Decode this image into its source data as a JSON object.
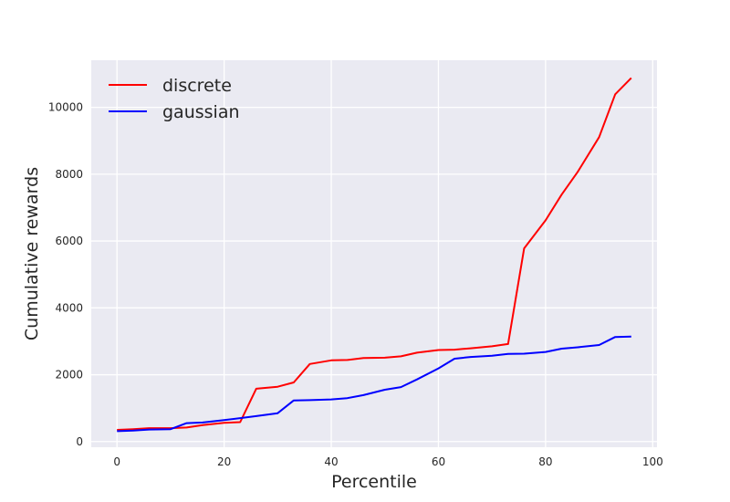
{
  "chart_data": {
    "type": "line",
    "title": "",
    "xlabel": "Percentile",
    "ylabel": "Cumulative rewards",
    "xlim": [
      -4.8,
      100.8
    ],
    "ylim": [
      -170,
      11410
    ],
    "xticks": [
      0,
      20,
      40,
      60,
      80,
      100
    ],
    "yticks": [
      0,
      2000,
      4000,
      6000,
      8000,
      10000
    ],
    "grid": true,
    "legend_position": "top-left",
    "series": [
      {
        "name": "discrete",
        "color": "#ff0000",
        "x": [
          0,
          3,
          6,
          10,
          13,
          16,
          20,
          23,
          26,
          30,
          33,
          36,
          40,
          43,
          46,
          50,
          53,
          56,
          60,
          63,
          66,
          70,
          73,
          76,
          80,
          83,
          86,
          90,
          93,
          96
        ],
        "y": [
          350,
          370,
          400,
          400,
          420,
          490,
          560,
          580,
          1580,
          1640,
          1770,
          2320,
          2430,
          2440,
          2500,
          2510,
          2550,
          2660,
          2740,
          2750,
          2790,
          2850,
          2920,
          5780,
          6620,
          7390,
          8070,
          9110,
          10390,
          10880
        ]
      },
      {
        "name": "gaussian",
        "color": "#0000ff",
        "x": [
          0,
          3,
          6,
          10,
          13,
          16,
          20,
          23,
          26,
          30,
          33,
          36,
          40,
          43,
          46,
          50,
          53,
          56,
          60,
          63,
          66,
          70,
          73,
          76,
          80,
          83,
          86,
          90,
          93,
          96
        ],
        "y": [
          310,
          330,
          360,
          370,
          550,
          570,
          640,
          700,
          760,
          850,
          1230,
          1240,
          1260,
          1300,
          1390,
          1550,
          1630,
          1860,
          2190,
          2480,
          2530,
          2570,
          2620,
          2630,
          2680,
          2780,
          2820,
          2890,
          3130,
          3140
        ]
      }
    ]
  }
}
